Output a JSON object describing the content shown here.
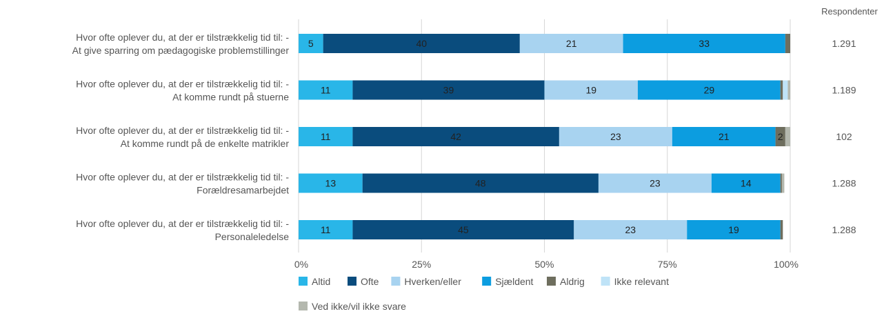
{
  "chart_data": {
    "type": "bar",
    "orientation": "horizontal",
    "stacked": true,
    "normalized_percent": true,
    "categories": [
      [
        "Hvor ofte oplever du, at der er tilstrækkelig tid til: -",
        "At give sparring om pædagogiske problemstillinger"
      ],
      [
        "Hvor ofte oplever du, at der er tilstrækkelig tid til: -",
        "At komme rundt på stuerne"
      ],
      [
        "Hvor ofte oplever du, at der er tilstrækkelig tid til: -",
        "At komme rundt på de enkelte matrikler"
      ],
      [
        "Hvor ofte oplever du, at der er tilstrækkelig tid til: -",
        "Forældresamarbejdet"
      ],
      [
        "Hvor ofte oplever du, at der er tilstrækkelig tid til: -",
        "Personaleledelse"
      ]
    ],
    "series": [
      {
        "name": "Altid",
        "color": "#29b6e8",
        "values": [
          5,
          11,
          11,
          13,
          11
        ]
      },
      {
        "name": "Ofte",
        "color": "#0a4c7d",
        "values": [
          40,
          39,
          42,
          48,
          45
        ]
      },
      {
        "name": "Hverken/eller",
        "color": "#a8d3f0",
        "values": [
          21,
          19,
          23,
          23,
          23
        ]
      },
      {
        "name": "Sjældent",
        "color": "#0c9de0",
        "values": [
          33,
          29,
          21,
          14,
          19
        ]
      },
      {
        "name": "Aldrig",
        "color": "#6e6e5e",
        "values": [
          1,
          0.5,
          2,
          0.3,
          0.5
        ]
      },
      {
        "name": "Ikke relevant",
        "color": "#bfe3f7",
        "values": [
          0,
          1,
          0,
          0,
          0
        ]
      },
      {
        "name": "Ved ikke/vil ikke svare",
        "color": "#b4b8ae",
        "values": [
          0,
          0.5,
          1,
          0.5,
          0
        ]
      }
    ],
    "show_label_min": 2,
    "respondents_header": "Respondenter",
    "respondents": [
      "1.291",
      "1.189",
      "102",
      "1.288",
      "1.288"
    ],
    "x_ticks": [
      "0%",
      "25%",
      "50%",
      "75%",
      "100%"
    ],
    "xlim": [
      0,
      100
    ],
    "grid": true,
    "legend_position": "bottom-left"
  }
}
